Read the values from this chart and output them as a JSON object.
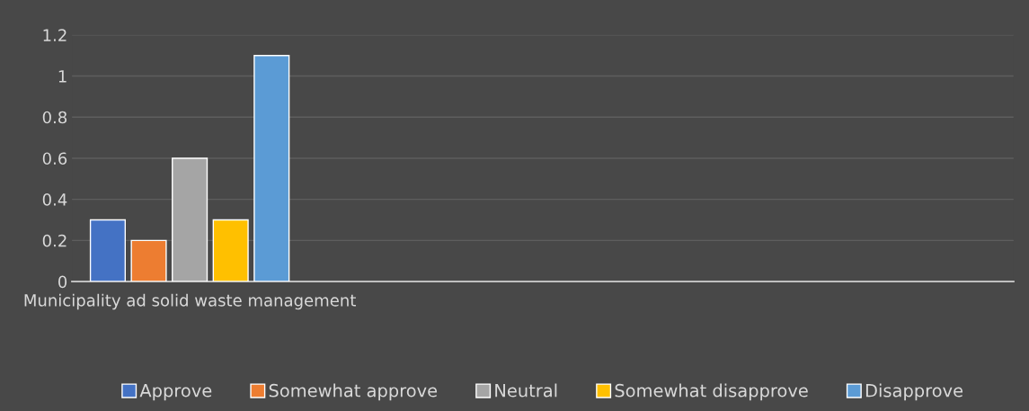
{
  "chart_data": {
    "type": "bar",
    "categories": [
      "Municipality ad solid waste management",
      null,
      null,
      null
    ],
    "series": [
      {
        "name": "Approve",
        "color": "#4472c4",
        "values": [
          0.3,
          null,
          null,
          null
        ]
      },
      {
        "name": "Somewhat approve",
        "color": "#ed7d31",
        "values": [
          0.2,
          null,
          null,
          null
        ]
      },
      {
        "name": "Neutral",
        "color": "#a5a5a5",
        "values": [
          0.6,
          null,
          null,
          null
        ]
      },
      {
        "name": "Somewhat disapprove",
        "color": "#ffc000",
        "values": [
          0.3,
          null,
          null,
          null
        ]
      },
      {
        "name": "Disapprove",
        "color": "#5b9bd5",
        "values": [
          1.1,
          null,
          null,
          null
        ]
      }
    ],
    "ylim": [
      0,
      1.2
    ],
    "yticks": [
      0,
      0.2,
      0.4,
      0.6,
      0.8,
      1,
      1.2
    ],
    "grid": "y",
    "legend": "bottom"
  }
}
